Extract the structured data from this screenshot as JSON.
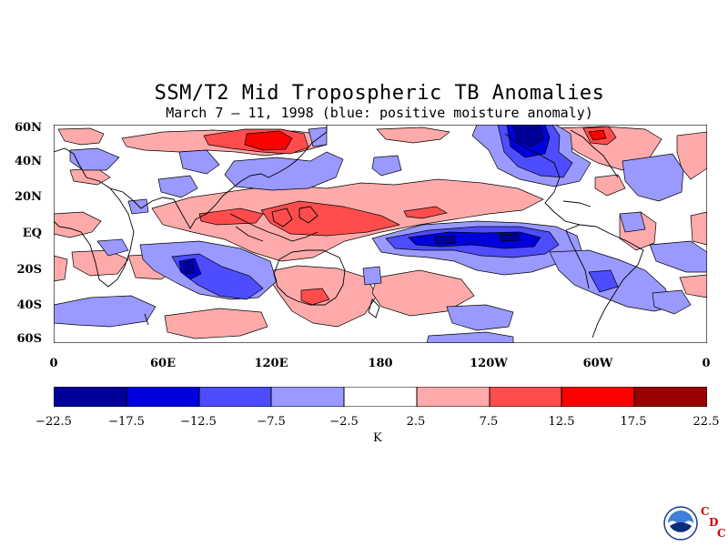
{
  "title": "SSM/T2 Mid Tropospheric TB Anomalies",
  "subtitle": "March 7 – 11, 1998 (blue: positive moisture anomaly)",
  "map": {
    "lat_labels": [
      "60N",
      "40N",
      "20N",
      "EQ",
      "20S",
      "40S",
      "60S"
    ],
    "lon_labels": [
      "0",
      "60E",
      "120E",
      "180",
      "120W",
      "60W",
      "0"
    ],
    "lat_range": [
      -60,
      60
    ],
    "lon_range": [
      0,
      360
    ]
  },
  "colorbar": {
    "ticks": [
      "−22.5",
      "−17.5",
      "−12.5",
      "−7.5",
      "−2.5",
      "2.5",
      "7.5",
      "12.5",
      "17.5",
      "22.5"
    ],
    "colors": [
      "#000099",
      "#0000dd",
      "#4d4dff",
      "#9999ff",
      "#ffffff",
      "#ffaaaa",
      "#ff4d4d",
      "#ff0000",
      "#990000"
    ],
    "units": "K"
  },
  "logo": {
    "icon": "noaa-logo-icon",
    "letters": [
      "C",
      "D",
      "C"
    ]
  }
}
